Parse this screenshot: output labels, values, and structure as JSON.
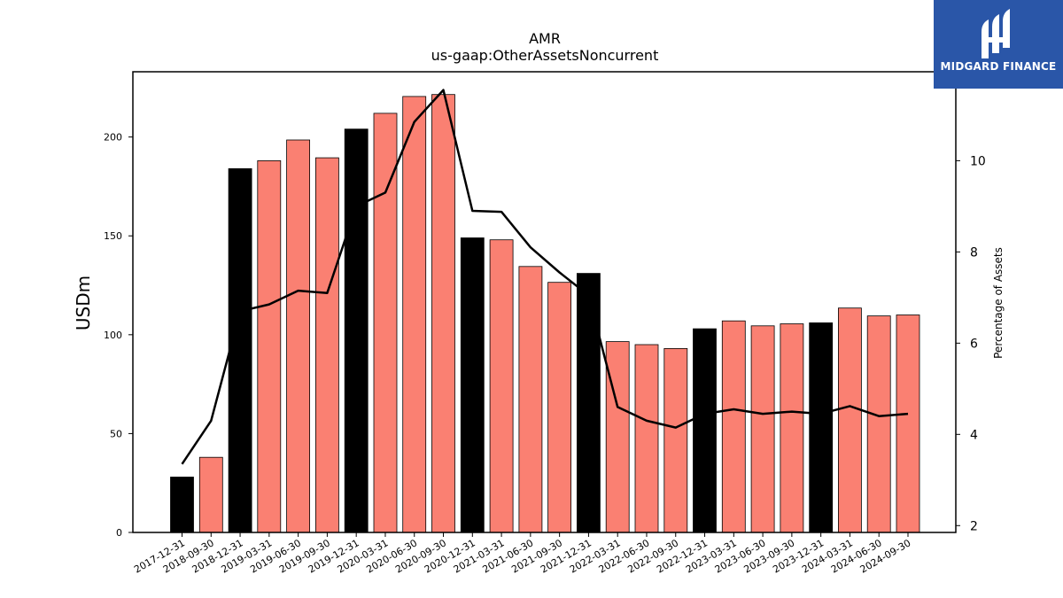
{
  "chart_data": {
    "type": "bar",
    "title": "AMR",
    "subtitle": "us-gaap:OtherAssetsNoncurrent",
    "ylabel": "USDm",
    "y2label": "Percentage of Assets",
    "ylim": [
      0,
      233
    ],
    "y2lim": [
      1.85,
      11.95
    ],
    "yticks": [
      0,
      50,
      100,
      150,
      200
    ],
    "y2ticks": [
      2,
      4,
      6,
      8,
      10
    ],
    "categories": [
      "2017-12-31",
      "2018-09-30",
      "2018-12-31",
      "2019-03-31",
      "2019-06-30",
      "2019-09-30",
      "2019-12-31",
      "2020-03-31",
      "2020-06-30",
      "2020-09-30",
      "2020-12-31",
      "2021-03-31",
      "2021-06-30",
      "2021-09-30",
      "2021-12-31",
      "2022-03-31",
      "2022-06-30",
      "2022-09-30",
      "2022-12-31",
      "2023-03-31",
      "2023-06-30",
      "2023-09-30",
      "2023-12-31",
      "2024-03-31",
      "2024-06-30",
      "2024-09-30"
    ],
    "series": [
      {
        "kind": "bar",
        "values": [
          28,
          38,
          184,
          188,
          198.5,
          189.5,
          204,
          212,
          220.5,
          221.5,
          149,
          148,
          134.5,
          126.5,
          131,
          96.5,
          95,
          93,
          103,
          107,
          104.5,
          105.5,
          106,
          113.5,
          109.5,
          110
        ],
        "annual": [
          true,
          false,
          true,
          false,
          false,
          false,
          true,
          false,
          false,
          false,
          true,
          false,
          false,
          false,
          true,
          false,
          false,
          false,
          true,
          false,
          false,
          false,
          true,
          false,
          false,
          false
        ]
      },
      {
        "kind": "line",
        "axis": "right",
        "values": [
          3.35,
          4.3,
          6.7,
          6.85,
          7.15,
          7.1,
          9.0,
          9.3,
          10.85,
          11.55,
          8.9,
          8.88,
          8.1,
          7.55,
          7.05,
          4.6,
          4.3,
          4.15,
          4.45,
          4.55,
          4.45,
          4.5,
          4.45,
          4.62,
          4.4,
          4.45
        ]
      }
    ],
    "colors": {
      "annual_bar": "#000000",
      "quarter_bar": "#fa8072",
      "line": "#000000"
    },
    "grid": false
  },
  "logo": {
    "text": "MIDGARD FINANCE",
    "icon": "midgard-logo-icon"
  }
}
